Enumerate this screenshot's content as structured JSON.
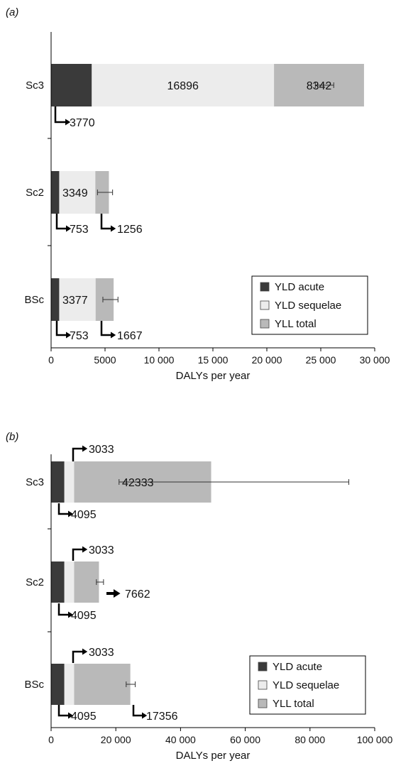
{
  "colors": {
    "yld_acute": "#3a3a3a",
    "yld_sequelae": "#ececec",
    "yll_total": "#b9b9b9",
    "axis": "#000000",
    "error_bar": "#333333"
  },
  "chart_data": [
    {
      "panel_label": "(a)",
      "type": "bar",
      "orientation": "horizontal",
      "stacked": true,
      "categories": [
        "Sc3",
        "Sc2",
        "BSc"
      ],
      "series": [
        {
          "name": "YLD acute",
          "values": [
            3770,
            753,
            753
          ]
        },
        {
          "name": "YLD sequelae",
          "values": [
            16896,
            3349,
            3377
          ]
        },
        {
          "name": "YLL total",
          "values": [
            8342,
            1256,
            1667
          ]
        }
      ],
      "error_bars": [
        {
          "value": 25400,
          "low": 24500,
          "high": 26200
        },
        {
          "value": 5000,
          "low": 4300,
          "high": 5700
        },
        {
          "value": 5500,
          "low": 4800,
          "high": 6200
        }
      ],
      "xlabel": "DALYs per year",
      "xlim": [
        0,
        30000
      ],
      "xticks": [
        "0",
        "5000",
        "10 000",
        "15 000",
        "20 000",
        "25 000",
        "30 000"
      ],
      "legend": {
        "placement": "bottom-right",
        "entries": [
          "YLD acute",
          "YLD sequelae",
          "YLL total"
        ]
      },
      "annotations": [
        {
          "text": "16896"
        },
        {
          "text": "8342"
        },
        {
          "text": "3770"
        },
        {
          "text": "3349"
        },
        {
          "text": "753"
        },
        {
          "text": "1256"
        },
        {
          "text": "3377"
        },
        {
          "text": "753"
        },
        {
          "text": "1667"
        }
      ]
    },
    {
      "panel_label": "(b)",
      "type": "bar",
      "orientation": "horizontal",
      "stacked": true,
      "categories": [
        "Sc3",
        "Sc2",
        "BSc"
      ],
      "series": [
        {
          "name": "YLD acute",
          "values": [
            4095,
            4095,
            4095
          ]
        },
        {
          "name": "YLD sequelae",
          "values": [
            3033,
            3033,
            3033
          ]
        },
        {
          "name": "YLL total",
          "values": [
            42333,
            7662,
            17356
          ]
        }
      ],
      "error_bars": [
        {
          "value": 49500,
          "low": 21000,
          "high": 92000
        },
        {
          "value": 15000,
          "low": 14000,
          "high": 16200
        },
        {
          "value": 24500,
          "low": 23200,
          "high": 26000
        }
      ],
      "xlabel": "DALYs per year",
      "xlim": [
        0,
        100000
      ],
      "xticks": [
        "0",
        "20 000",
        "40 000",
        "60 000",
        "80 000",
        "100 000"
      ],
      "legend": {
        "placement": "bottom-right",
        "entries": [
          "YLD acute",
          "YLD sequelae",
          "YLL total"
        ]
      },
      "annotations": [
        {
          "text": "3033"
        },
        {
          "text": "42333"
        },
        {
          "text": "4095"
        },
        {
          "text": "3033"
        },
        {
          "text": "7662"
        },
        {
          "text": "4095"
        },
        {
          "text": "3033"
        },
        {
          "text": "4095"
        },
        {
          "text": "17356"
        }
      ]
    }
  ]
}
